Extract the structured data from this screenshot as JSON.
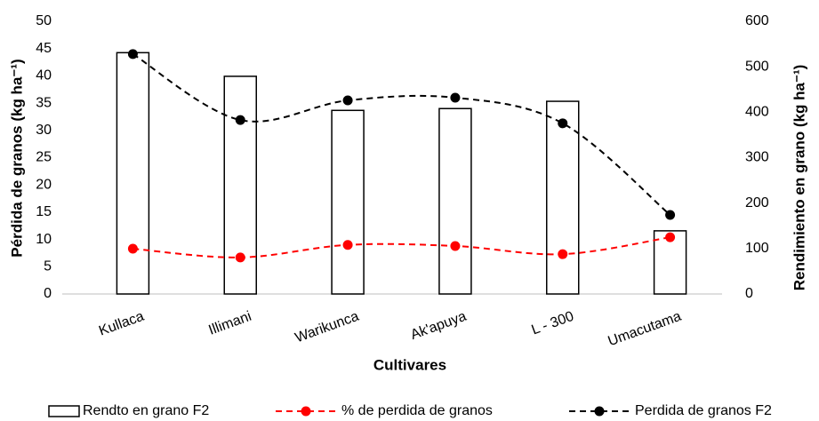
{
  "chart_data": {
    "type": "bar_line",
    "x_label": "Cultivares",
    "y_label": "Pérdida de granos (kg ha⁻¹)",
    "y2_label": "Rendimiento en grano (kg ha⁻¹)",
    "categories": [
      "Kullaca",
      "Illimani",
      "Warikunca",
      "Ak'apuya",
      "L - 300",
      "Umacutama"
    ],
    "series": [
      {
        "name": "Rendto en grano F2",
        "type": "bar",
        "axis": "y2",
        "color": "#000000",
        "values": [
          531,
          479,
          404,
          408,
          424,
          139
        ]
      },
      {
        "name": "% de perdida de granos",
        "type": "line",
        "color": "#ff0000",
        "values": [
          8.3,
          6.7,
          9.0,
          8.8,
          7.3,
          10.4
        ]
      },
      {
        "name": "Perdida de granos F2",
        "type": "line",
        "color": "#000000",
        "values": [
          44.0,
          31.9,
          35.5,
          36.0,
          31.3,
          14.5
        ]
      }
    ],
    "ylim": [
      0,
      50
    ],
    "yticks": [
      0,
      5,
      10,
      15,
      20,
      25,
      30,
      35,
      40,
      45,
      50
    ],
    "y2lim": [
      0,
      600
    ],
    "y2ticks": [
      0,
      100,
      200,
      300,
      400,
      500,
      600
    ],
    "legend": "bottom"
  }
}
